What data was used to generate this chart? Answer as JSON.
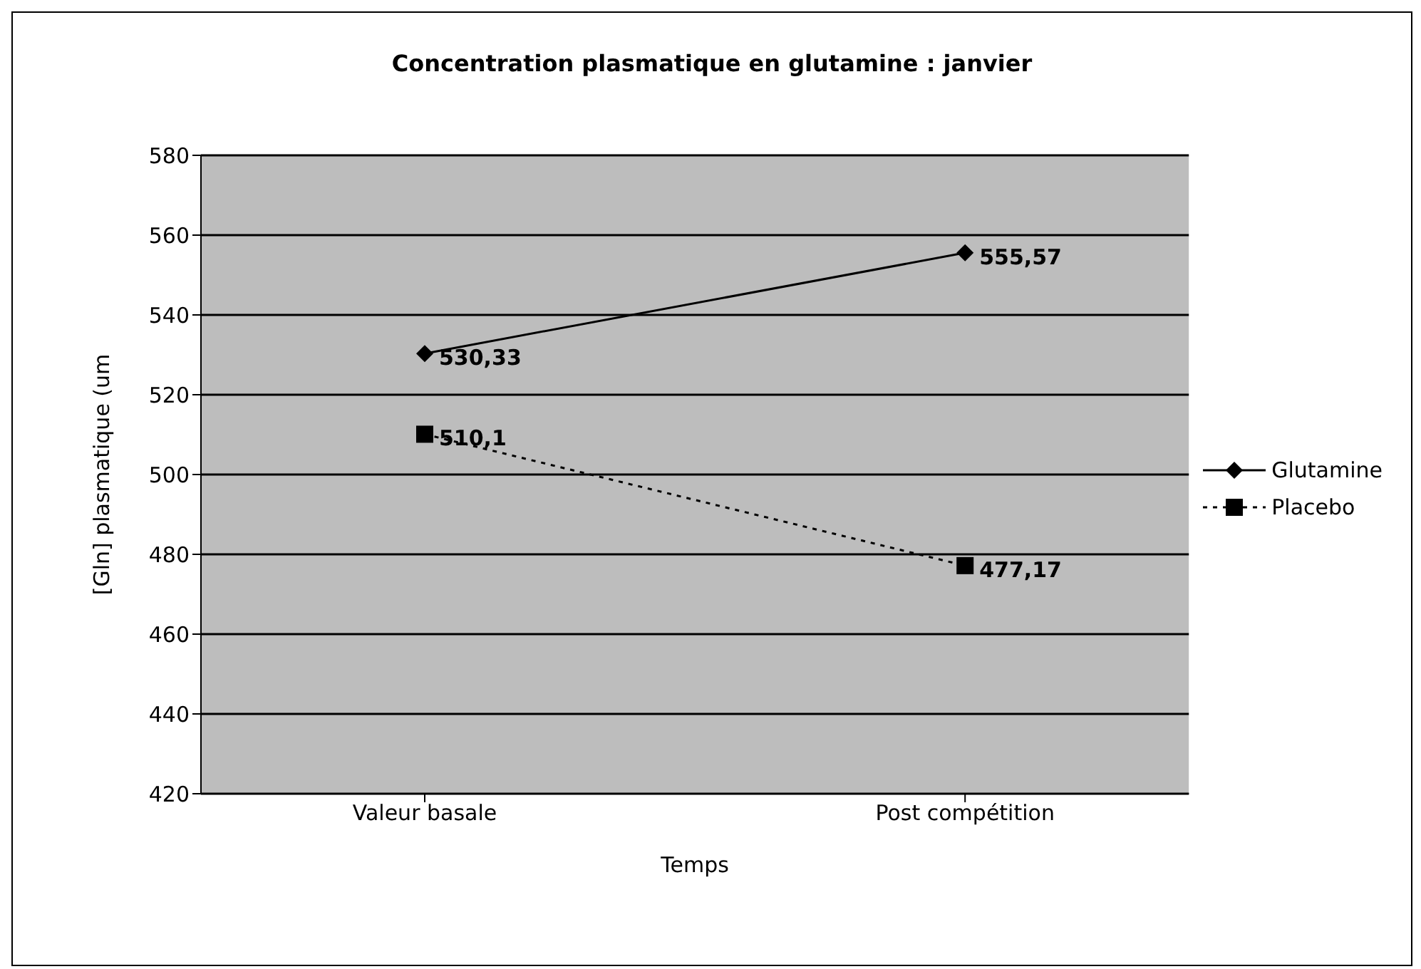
{
  "chart_data": {
    "type": "line",
    "title": "Concentration plasmatique en glutamine : janvier",
    "xlabel": "Temps",
    "ylabel": "[Gln] plasmatique (um",
    "categories": [
      "Valeur basale",
      "Post compétition"
    ],
    "series": [
      {
        "name": "Glutamine",
        "color": "#000000",
        "values": [
          530.33,
          555.57
        ],
        "marker": "diamond",
        "line_style": "solid",
        "value_labels": [
          "530,33",
          "555,57"
        ]
      },
      {
        "name": "Placebo",
        "color": "#000000",
        "values": [
          510.1,
          477.17
        ],
        "marker": "square",
        "line_style": "dotted",
        "value_labels": [
          "510,1",
          "477,17"
        ]
      }
    ],
    "ylim": [
      420,
      580
    ],
    "yticks": [
      420,
      440,
      460,
      480,
      500,
      520,
      540,
      560,
      580
    ],
    "grid": "y",
    "legend": "right"
  }
}
